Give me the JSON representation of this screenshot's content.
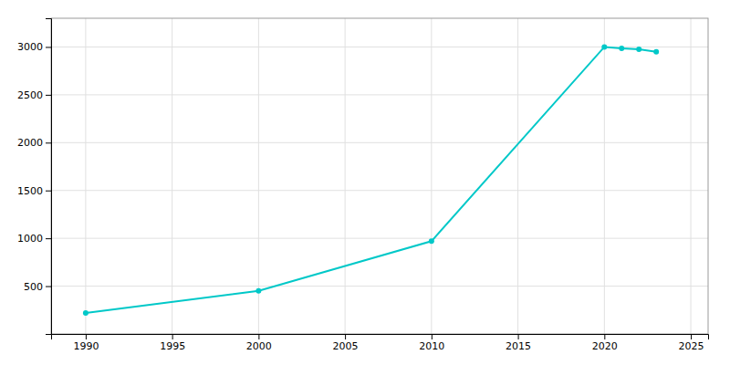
{
  "chart_data": {
    "type": "line",
    "x": [
      1990,
      2000,
      2010,
      2020,
      2021,
      2022,
      2023
    ],
    "values": [
      220,
      450,
      970,
      3000,
      2985,
      2975,
      2950
    ],
    "color": "#00c8c8",
    "marker": "circle",
    "xlim": [
      1988,
      2026
    ],
    "ylim": [
      0,
      3300
    ],
    "xticks": [
      1990,
      1995,
      2000,
      2005,
      2010,
      2015,
      2020,
      2025
    ],
    "yticks": [
      500,
      1000,
      1500,
      2000,
      2500,
      3000
    ],
    "grid": true
  }
}
